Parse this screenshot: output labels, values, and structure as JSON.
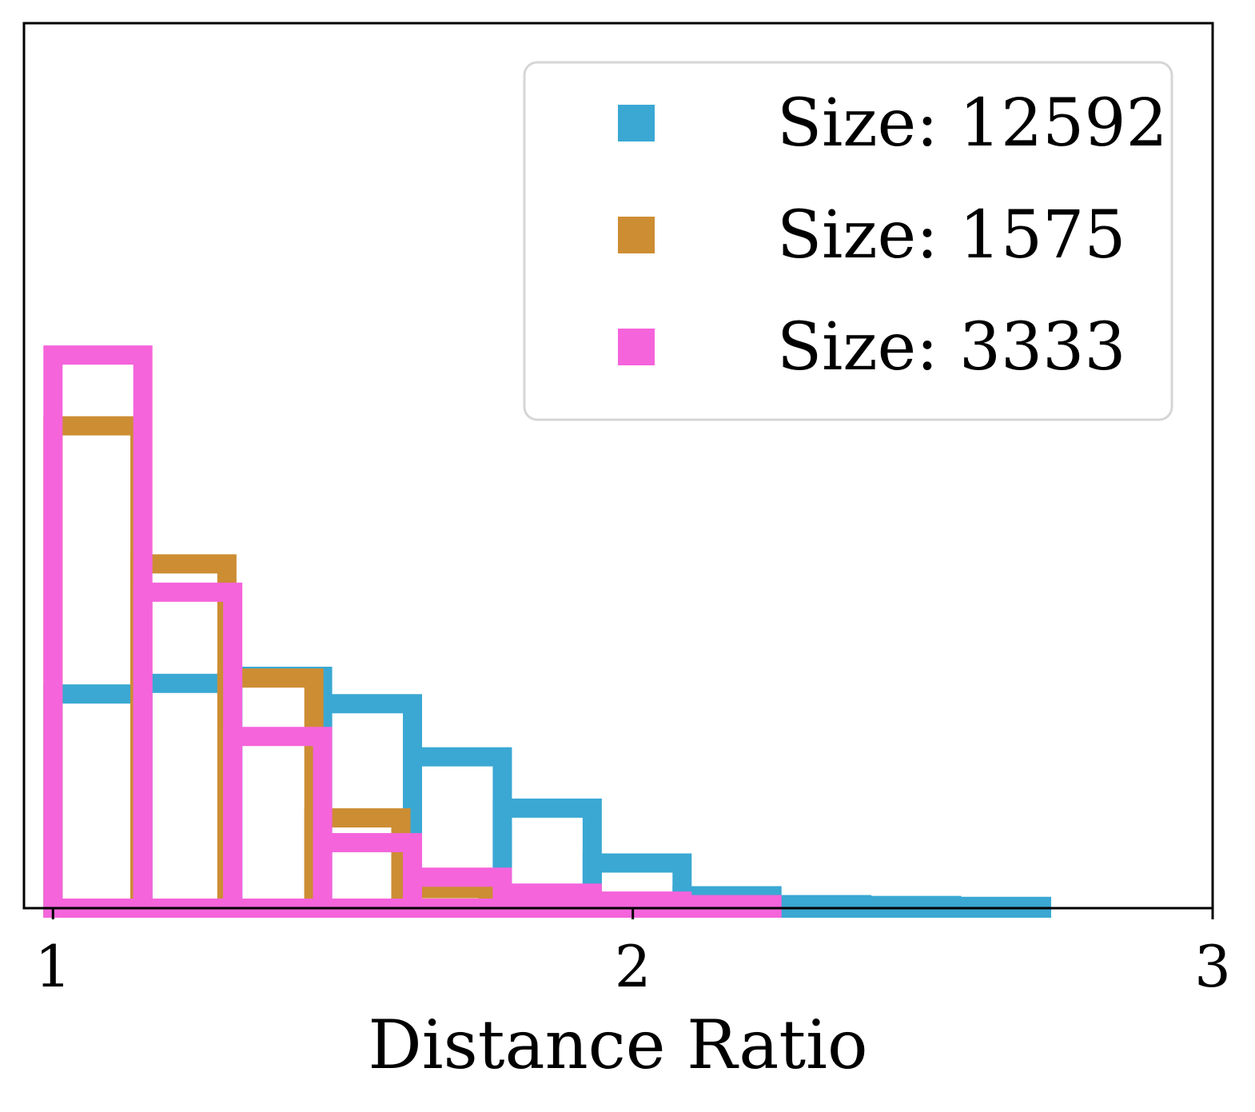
{
  "chart_data": {
    "type": "histogram",
    "xlabel": "Distance Ratio",
    "ylabel": "",
    "xlim": [
      0.95,
      3.0
    ],
    "ylim": [
      0,
      1
    ],
    "x_ticks": [
      {
        "value": 1,
        "label": "1"
      },
      {
        "value": 2,
        "label": "2"
      },
      {
        "value": 3,
        "label": "3"
      }
    ],
    "y_axis_visible": false,
    "grid": false,
    "legend_position": "top-right",
    "bar_style": "step outline",
    "series": [
      {
        "name": "Size: 12592",
        "color": "#3AA8D3",
        "bin_edges": [
          1.0,
          1.155,
          1.31,
          1.465,
          1.62,
          1.775,
          1.93,
          2.085,
          2.24,
          2.395,
          2.55,
          2.705
        ],
        "values": [
          0.242,
          0.254,
          0.262,
          0.231,
          0.171,
          0.113,
          0.051,
          0.014,
          0.004,
          0.003,
          0.002
        ]
      },
      {
        "name": "Size: 1575",
        "color": "#CD8D33",
        "bin_edges": [
          1.0,
          1.15,
          1.3,
          1.45,
          1.6,
          1.75
        ],
        "values": [
          0.545,
          0.389,
          0.26,
          0.102,
          0.022
        ]
      },
      {
        "name": "Size: 3333",
        "color": "#F564DB",
        "bin_edges": [
          1.0,
          1.155,
          1.31,
          1.465,
          1.62,
          1.775,
          1.93,
          2.085,
          2.24
        ],
        "values": [
          0.625,
          0.357,
          0.194,
          0.074,
          0.035,
          0.017,
          0.008,
          0.004
        ]
      }
    ]
  }
}
